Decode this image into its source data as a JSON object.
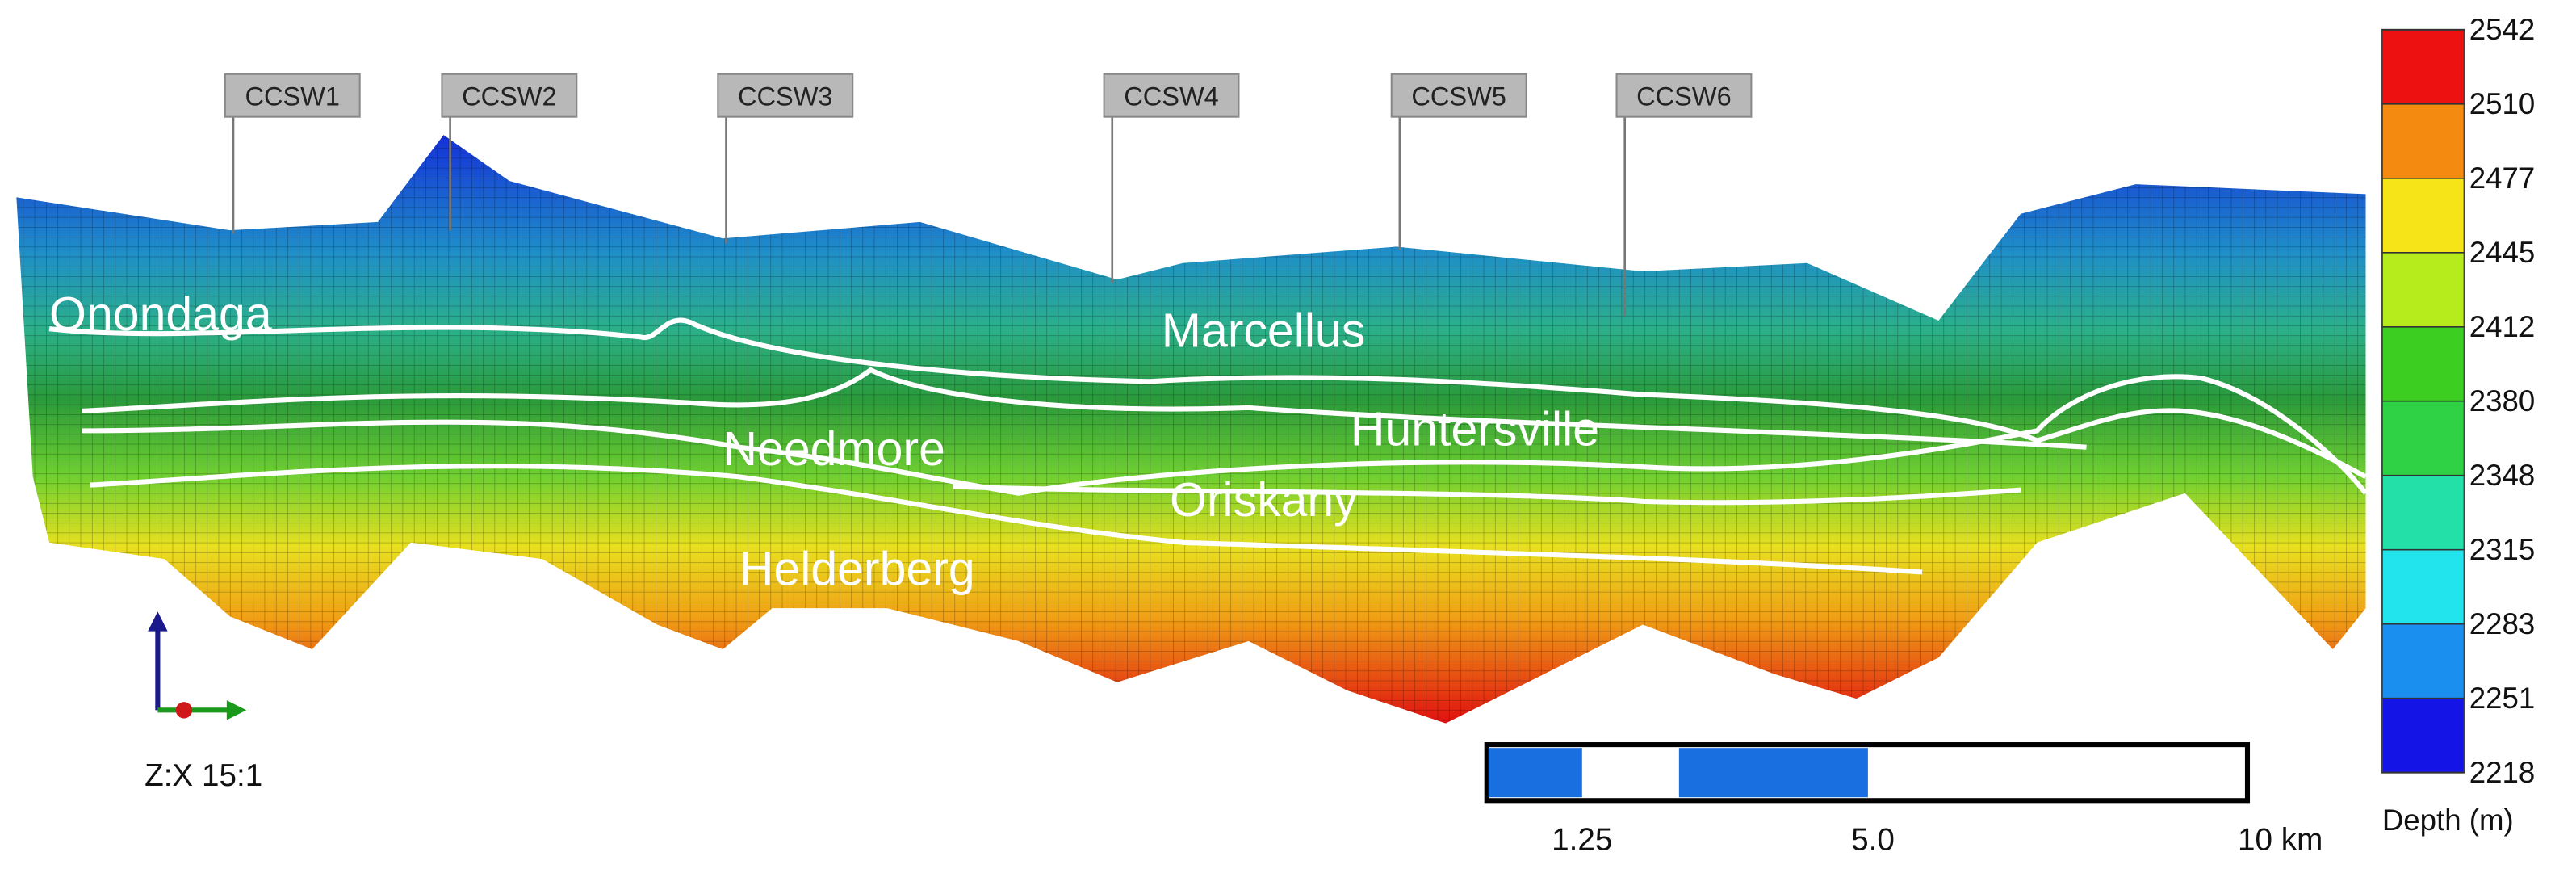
{
  "wells": [
    "CCSW1",
    "CCSW2",
    "CCSW3",
    "CCSW4",
    "CCSW5",
    "CCSW6"
  ],
  "formations": [
    "Onondaga",
    "Marcellus",
    "Needmore",
    "Huntersville",
    "Oriskany",
    "Helderberg"
  ],
  "colorbar": {
    "title": "Depth (m)",
    "ticks": [
      2542,
      2510,
      2477,
      2445,
      2412,
      2380,
      2348,
      2315,
      2283,
      2251,
      2218
    ],
    "colors": [
      "#ee1111",
      "#f58a10",
      "#f7e418",
      "#b6ec1c",
      "#3ccf22",
      "#2ed244",
      "#22e0a8",
      "#22e4ec",
      "#1b8ff0",
      "#1414e6"
    ]
  },
  "scale_bar": {
    "labels": [
      "1.25",
      "5.0",
      "10 km"
    ]
  },
  "axis_ratio": "Z:X 15:1"
}
